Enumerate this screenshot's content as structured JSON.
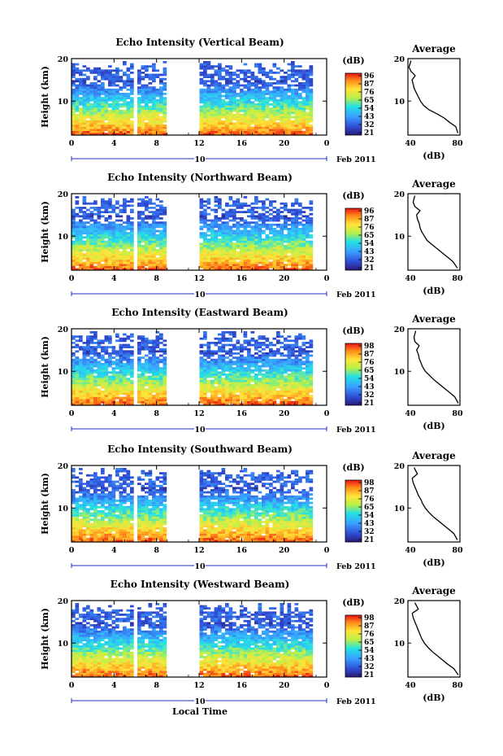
{
  "figure": {
    "xlabel": "Local Time",
    "date_label": "Feb 2011",
    "day_label": "10"
  },
  "chart_data": [
    {
      "type": "heatmap",
      "title": "Echo Intensity (Vertical Beam)",
      "xlabel": "",
      "ylabel": "Height (km)",
      "xlim": [
        0,
        24
      ],
      "ylim": [
        2,
        20
      ],
      "xticks": [
        "0",
        "4",
        "8",
        "12",
        "16",
        "20",
        "0"
      ],
      "yticks": [
        "20",
        "10"
      ],
      "colorbar": {
        "label": "(dB)",
        "ticks": [
          "96",
          "87",
          "76",
          "65",
          "54",
          "43",
          "32",
          "21"
        ],
        "range": [
          21,
          96
        ]
      },
      "data_gaps_hours": [
        [
          5.8,
          6.1
        ],
        [
          8.8,
          11.8
        ],
        [
          18.6,
          18.9
        ],
        [
          21.4,
          21.6
        ],
        [
          22.5,
          24
        ]
      ],
      "average_profile": {
        "title": "Average",
        "xlabel": "(dB)",
        "xlim": [
          40,
          90
        ],
        "xticks": [
          "40",
          "80"
        ],
        "ylim": [
          2,
          20
        ],
        "yticks": [
          "20",
          "10"
        ],
        "height_km": [
          2.5,
          4,
          5,
          6,
          7,
          8,
          9,
          10,
          11,
          12,
          13,
          14,
          15,
          16,
          17,
          18,
          19.5
        ],
        "db": [
          88,
          86,
          80,
          75,
          68,
          60,
          55,
          52,
          50,
          48,
          46,
          45,
          44,
          47,
          43,
          41,
          43
        ]
      }
    },
    {
      "type": "heatmap",
      "title": "Echo Intensity (Northward Beam)",
      "xlabel": "",
      "ylabel": "Height (km)",
      "xlim": [
        0,
        24
      ],
      "ylim": [
        2,
        20
      ],
      "xticks": [
        "0",
        "4",
        "8",
        "12",
        "16",
        "20",
        "0"
      ],
      "yticks": [
        "20",
        "10"
      ],
      "colorbar": {
        "label": "(dB)",
        "ticks": [
          "96",
          "87",
          "76",
          "65",
          "54",
          "43",
          "32",
          "21"
        ],
        "range": [
          21,
          96
        ]
      },
      "data_gaps_hours": [
        [
          5.8,
          6.1
        ],
        [
          8.8,
          11.8
        ],
        [
          18.6,
          18.9
        ],
        [
          21.4,
          21.6
        ],
        [
          22.5,
          24
        ]
      ],
      "average_profile": {
        "title": "Average",
        "xlabel": "(dB)",
        "xlim": [
          30,
          90
        ],
        "xticks": [
          "40",
          "80"
        ],
        "ylim": [
          2,
          20
        ],
        "yticks": [
          "20",
          "10"
        ],
        "height_km": [
          2.5,
          4,
          5,
          6,
          7,
          8,
          9,
          10,
          11,
          12,
          13,
          14,
          15,
          16,
          17,
          18,
          19.5
        ],
        "db": [
          87,
          82,
          76,
          70,
          64,
          58,
          52,
          49,
          46,
          44,
          43,
          41,
          40,
          44,
          38,
          36,
          38
        ]
      }
    },
    {
      "type": "heatmap",
      "title": "Echo Intensity (Eastward Beam)",
      "xlabel": "",
      "ylabel": "Height (km)",
      "xlim": [
        0,
        24
      ],
      "ylim": [
        2,
        20
      ],
      "xticks": [
        "0",
        "4",
        "8",
        "12",
        "16",
        "20",
        "0"
      ],
      "yticks": [
        "20",
        "10"
      ],
      "colorbar": {
        "label": "(dB)",
        "ticks": [
          "98",
          "87",
          "76",
          "65",
          "54",
          "43",
          "32",
          "21"
        ],
        "range": [
          21,
          98
        ]
      },
      "data_gaps_hours": [
        [
          5.8,
          6.1
        ],
        [
          8.8,
          11.8
        ],
        [
          18.6,
          18.9
        ],
        [
          21.4,
          21.6
        ],
        [
          22.5,
          24
        ]
      ],
      "average_profile": {
        "title": "Average",
        "xlabel": "(dB)",
        "xlim": [
          30,
          90
        ],
        "xticks": [
          "40",
          "80"
        ],
        "ylim": [
          2,
          20
        ],
        "yticks": [
          "20",
          "10"
        ],
        "height_km": [
          2.5,
          4,
          5,
          6,
          7,
          8,
          9,
          10,
          11,
          12,
          13,
          14,
          15,
          16,
          17,
          18,
          19.5
        ],
        "db": [
          88,
          84,
          78,
          72,
          66,
          60,
          55,
          50,
          47,
          45,
          43,
          42,
          40,
          43,
          38,
          37,
          39
        ]
      }
    },
    {
      "type": "heatmap",
      "title": "Echo Intensity (Southward Beam)",
      "xlabel": "",
      "ylabel": "Height (km)",
      "xlim": [
        0,
        24
      ],
      "ylim": [
        2,
        20
      ],
      "xticks": [
        "0",
        "4",
        "8",
        "12",
        "16",
        "20",
        "0"
      ],
      "yticks": [
        "20",
        "10"
      ],
      "colorbar": {
        "label": "(dB)",
        "ticks": [
          "98",
          "87",
          "76",
          "65",
          "54",
          "43",
          "32",
          "21"
        ],
        "range": [
          21,
          98
        ]
      },
      "data_gaps_hours": [
        [
          5.8,
          6.1
        ],
        [
          8.8,
          11.8
        ],
        [
          18.6,
          18.9
        ],
        [
          21.4,
          21.6
        ],
        [
          22.5,
          24
        ]
      ],
      "average_profile": {
        "title": "Average",
        "xlabel": "(dB)",
        "xlim": [
          30,
          90
        ],
        "xticks": [
          "40",
          "80"
        ],
        "ylim": [
          2,
          20
        ],
        "yticks": [
          "20",
          "10"
        ],
        "height_km": [
          2.5,
          4,
          5,
          6,
          7,
          8,
          9,
          10,
          11,
          12,
          13,
          14,
          15,
          16,
          17,
          18,
          19.5
        ],
        "db": [
          87,
          83,
          77,
          71,
          65,
          59,
          54,
          50,
          47,
          45,
          42,
          40,
          38,
          36,
          35,
          41,
          37
        ]
      }
    },
    {
      "type": "heatmap",
      "title": "Echo Intensity (Westward Beam)",
      "xlabel": "",
      "ylabel": "Height (km)",
      "xlim": [
        0,
        24
      ],
      "ylim": [
        2,
        20
      ],
      "xticks": [
        "0",
        "4",
        "8",
        "12",
        "16",
        "20",
        "0"
      ],
      "yticks": [
        "20",
        "10"
      ],
      "colorbar": {
        "label": "(dB)",
        "ticks": [
          "98",
          "87",
          "76",
          "65",
          "54",
          "43",
          "32",
          "21"
        ],
        "range": [
          21,
          98
        ]
      },
      "data_gaps_hours": [
        [
          5.8,
          6.1
        ],
        [
          8.8,
          11.8
        ],
        [
          18.6,
          18.9
        ],
        [
          21.4,
          21.6
        ],
        [
          22.5,
          24
        ]
      ],
      "average_profile": {
        "title": "Average",
        "xlabel": "(dB)",
        "xlim": [
          30,
          90
        ],
        "xticks": [
          "40",
          "80"
        ],
        "ylim": [
          2,
          20
        ],
        "yticks": [
          "20",
          "10"
        ],
        "height_km": [
          2.5,
          4,
          5,
          6,
          7,
          8,
          9,
          10,
          11,
          12,
          13,
          14,
          15,
          16,
          17,
          18,
          19.5
        ],
        "db": [
          88,
          83,
          76,
          70,
          64,
          58,
          53,
          49,
          46,
          44,
          42,
          40,
          38,
          36,
          35,
          42,
          38
        ]
      }
    }
  ]
}
